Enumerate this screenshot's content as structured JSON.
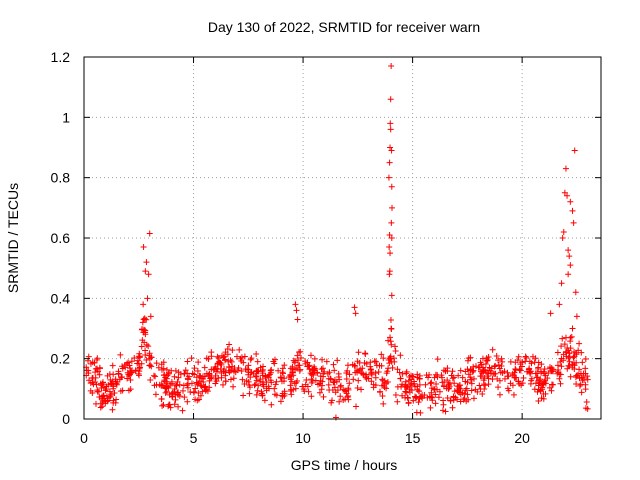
{
  "chart_data": {
    "type": "scatter",
    "title": "Day 130 of 2022, SRMTID for receiver warn",
    "xlabel": "GPS time / hours",
    "ylabel": "SRMTID / TECUs",
    "xlim": [
      0,
      23.6
    ],
    "ylim": [
      0,
      1.2
    ],
    "xticks": [
      0,
      5,
      10,
      15,
      20
    ],
    "xtick_labels": [
      "0",
      "5",
      "10",
      "15",
      "20"
    ],
    "yticks": [
      0,
      0.2,
      0.4,
      0.6,
      0.8,
      1,
      1.2
    ],
    "ytick_labels": [
      "0",
      "0.2",
      "0.4",
      "0.6",
      "0.8",
      "1",
      "1.2"
    ],
    "grid": true,
    "marker": "+",
    "color": "#ff0000",
    "series": [
      {
        "name": "SRMTID",
        "description": "approximate envelope of ~1000 per-satellite observations",
        "profile_x": [
          0,
          0.1,
          0.3,
          0.6,
          0.9,
          1.3,
          1.7,
          2.2,
          2.5,
          2.75,
          2.9,
          3.1,
          3.5,
          4.0,
          5.0,
          5.5,
          6.5,
          7.2,
          8.0,
          8.5,
          9.0,
          9.7,
          10.2,
          11.0,
          12.0,
          12.5,
          13.0,
          13.5,
          13.8,
          14.05,
          14.3,
          15.0,
          16.0,
          17.0,
          17.8,
          18.5,
          19.0,
          19.5,
          20.0,
          20.5,
          21.0,
          21.3,
          21.7,
          22.0,
          22.3,
          22.6,
          22.9,
          23.0
        ],
        "profile_y": [
          0.16,
          0.2,
          0.14,
          0.12,
          0.08,
          0.1,
          0.14,
          0.15,
          0.18,
          0.3,
          0.25,
          0.14,
          0.12,
          0.1,
          0.12,
          0.14,
          0.18,
          0.17,
          0.12,
          0.14,
          0.1,
          0.16,
          0.15,
          0.13,
          0.12,
          0.15,
          0.16,
          0.13,
          0.14,
          0.24,
          0.12,
          0.1,
          0.1,
          0.1,
          0.13,
          0.18,
          0.15,
          0.14,
          0.16,
          0.15,
          0.13,
          0.12,
          0.17,
          0.22,
          0.2,
          0.15,
          0.12,
          0.12
        ],
        "extreme_points": [
          {
            "x": 2.72,
            "y": 0.57
          },
          {
            "x": 2.8,
            "y": 0.49
          },
          {
            "x": 2.85,
            "y": 0.52
          },
          {
            "x": 3.0,
            "y": 0.615
          },
          {
            "x": 2.95,
            "y": 0.48
          },
          {
            "x": 2.7,
            "y": 0.38
          },
          {
            "x": 2.9,
            "y": 0.4
          },
          {
            "x": 3.05,
            "y": 0.34
          },
          {
            "x": 2.78,
            "y": 0.33
          },
          {
            "x": 9.65,
            "y": 0.38
          },
          {
            "x": 9.7,
            "y": 0.36
          },
          {
            "x": 9.75,
            "y": 0.33
          },
          {
            "x": 12.35,
            "y": 0.37
          },
          {
            "x": 12.4,
            "y": 0.35
          },
          {
            "x": 11.5,
            "y": 0.005
          },
          {
            "x": 13.92,
            "y": 0.8
          },
          {
            "x": 13.95,
            "y": 0.85
          },
          {
            "x": 13.97,
            "y": 0.9
          },
          {
            "x": 13.98,
            "y": 0.98
          },
          {
            "x": 14.0,
            "y": 1.06
          },
          {
            "x": 14.02,
            "y": 1.17
          },
          {
            "x": 14.0,
            "y": 0.96
          },
          {
            "x": 14.04,
            "y": 0.89
          },
          {
            "x": 14.05,
            "y": 0.77
          },
          {
            "x": 14.06,
            "y": 0.7
          },
          {
            "x": 14.03,
            "y": 0.65
          },
          {
            "x": 13.95,
            "y": 0.61
          },
          {
            "x": 14.05,
            "y": 0.6
          },
          {
            "x": 13.93,
            "y": 0.57
          },
          {
            "x": 13.97,
            "y": 0.55
          },
          {
            "x": 13.96,
            "y": 0.49
          },
          {
            "x": 13.94,
            "y": 0.48
          },
          {
            "x": 14.05,
            "y": 0.41
          },
          {
            "x": 14.02,
            "y": 0.3
          },
          {
            "x": 13.88,
            "y": 0.26
          },
          {
            "x": 21.3,
            "y": 0.35
          },
          {
            "x": 21.7,
            "y": 0.38
          },
          {
            "x": 21.8,
            "y": 0.45
          },
          {
            "x": 21.85,
            "y": 0.6
          },
          {
            "x": 21.9,
            "y": 0.62
          },
          {
            "x": 21.95,
            "y": 0.75
          },
          {
            "x": 22.0,
            "y": 0.83
          },
          {
            "x": 22.05,
            "y": 0.74
          },
          {
            "x": 22.1,
            "y": 0.56
          },
          {
            "x": 22.15,
            "y": 0.54
          },
          {
            "x": 22.2,
            "y": 0.51
          },
          {
            "x": 22.1,
            "y": 0.48
          },
          {
            "x": 22.3,
            "y": 0.69
          },
          {
            "x": 22.35,
            "y": 0.65
          },
          {
            "x": 22.4,
            "y": 0.89
          },
          {
            "x": 22.2,
            "y": 0.72
          },
          {
            "x": 22.45,
            "y": 0.42
          },
          {
            "x": 22.5,
            "y": 0.34
          },
          {
            "x": 22.3,
            "y": 0.3
          },
          {
            "x": 22.6,
            "y": 0.25
          },
          {
            "x": 22.7,
            "y": 0.22
          }
        ]
      }
    ]
  }
}
